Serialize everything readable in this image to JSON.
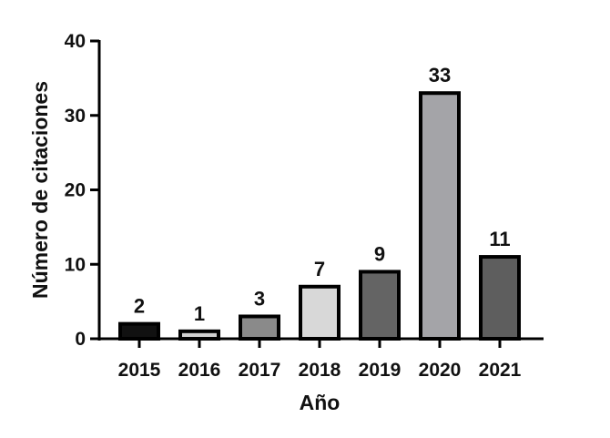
{
  "chart_data": {
    "type": "bar",
    "xlabel": "Año",
    "ylabel": "Número de citaciones",
    "ylim": [
      0,
      40
    ],
    "yticks": [
      0,
      10,
      20,
      30,
      40
    ],
    "grid": false,
    "categories": [
      "2015",
      "2016",
      "2017",
      "2018",
      "2019",
      "2020",
      "2021"
    ],
    "values": [
      2,
      1,
      3,
      7,
      9,
      33,
      11
    ],
    "data_labels": [
      "2",
      "1",
      "3",
      "7",
      "9",
      "33",
      "11"
    ],
    "bar_fills": [
      "#111111",
      "#d0d0d0",
      "#8a8a8a",
      "#d8d8d8",
      "#646464",
      "#a4a4a8",
      "#5e5e5e"
    ],
    "bar_outline_color": "#000000",
    "axis_color": "#000000"
  }
}
